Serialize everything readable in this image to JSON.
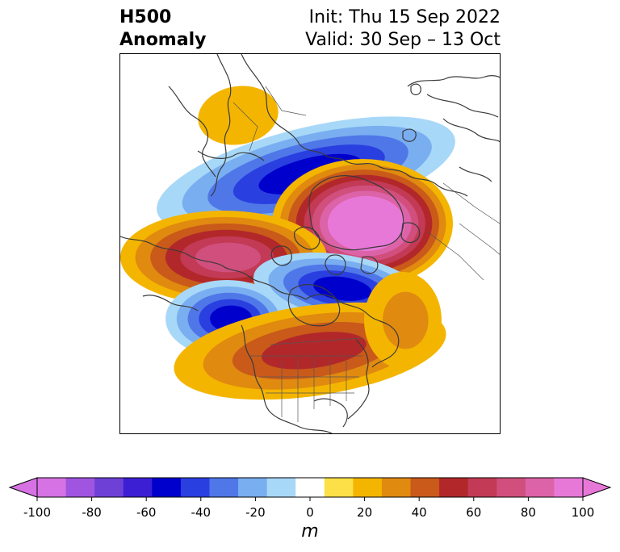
{
  "title": {
    "left_line1": "H500",
    "left_line2": "Anomaly",
    "right_line1": "Init: Thu 15 Sep 2022",
    "right_line2": "Valid: 30 Sep – 13 Oct"
  },
  "colorbar": {
    "unit": "m",
    "min": -100,
    "max": 100,
    "step": 10,
    "extend": "both",
    "tick_values": [
      -100,
      -80,
      -60,
      -40,
      -20,
      0,
      20,
      40,
      60,
      80,
      100
    ],
    "tick_labels": [
      "-100",
      "-80",
      "-60",
      "-40",
      "-20",
      "0",
      "20",
      "40",
      "60",
      "80",
      "100"
    ],
    "colors": [
      "#d672e3",
      "#a055e0",
      "#6e40d6",
      "#3c1fd2",
      "#0000cc",
      "#2a3fe0",
      "#4f77e8",
      "#79aef0",
      "#a8d8f8",
      "#ffffff",
      "#fde047",
      "#f4b500",
      "#e08a10",
      "#c95a1a",
      "#b2282a",
      "#c23a55",
      "#d04f7c",
      "#dc63a8",
      "#e878d8"
    ],
    "extend_low_color": "#d672e3",
    "extend_high_color": "#e878d8"
  },
  "anomaly_features": [
    {
      "name": "arctic-ridge",
      "sign": "positive",
      "peak_m": 100,
      "location": "Greenland / Arctic"
    },
    {
      "name": "siberia-trough",
      "sign": "negative",
      "peak_m": -60,
      "location": "Siberia / Arctic"
    },
    {
      "name": "alaska-ridge",
      "sign": "positive",
      "peak_m": 60,
      "location": "Bering / Alaska"
    },
    {
      "name": "hudson-trough",
      "sign": "negative",
      "peak_m": -50,
      "location": "Hudson Bay / Canada"
    },
    {
      "name": "pacific-trough",
      "sign": "negative",
      "peak_m": -50,
      "location": "NE Pacific"
    },
    {
      "name": "great-lakes-ridge",
      "sign": "positive",
      "peak_m": 40,
      "location": "Great Lakes / E US"
    },
    {
      "name": "europe-ridge",
      "sign": "positive",
      "peak_m": 20,
      "location": "Europe"
    },
    {
      "name": "atlantic-ridge",
      "sign": "positive",
      "peak_m": 20,
      "location": "N Atlantic"
    }
  ]
}
